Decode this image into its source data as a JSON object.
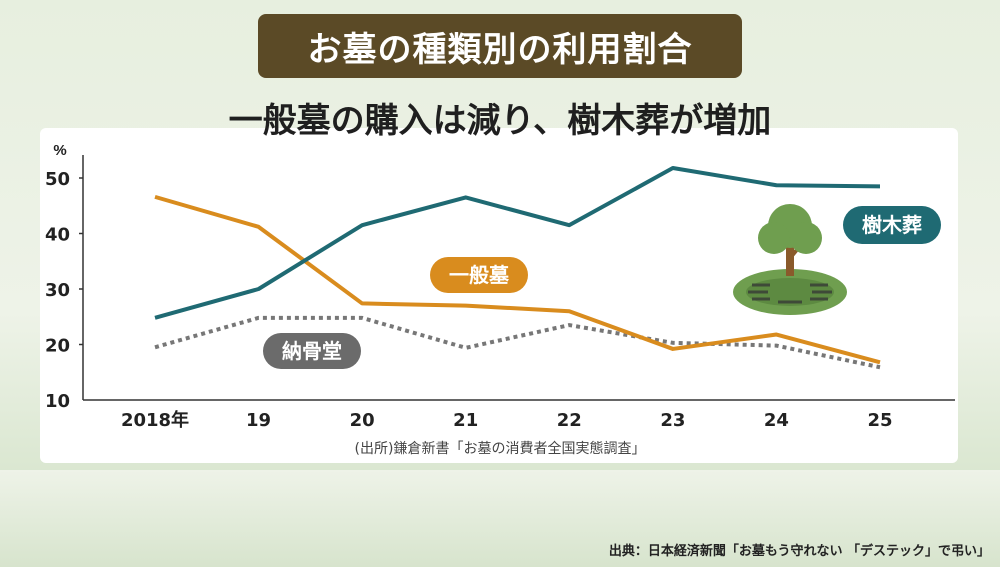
{
  "title": "お墓の種類別の利用割合",
  "subtitle": "一般墓の購入は減り、樹木葬が増加",
  "source": "(出所)鎌倉新書「お墓の消費者全国実態調査」",
  "credit": "出典：日本経済新聞「お墓もう守れない 「デステック」で弔い」",
  "chart_data": {
    "type": "line",
    "ylabel": "%",
    "ylim": [
      10,
      50
    ],
    "yticks": [
      10,
      20,
      30,
      40,
      50
    ],
    "categories": [
      "2018年",
      "19",
      "20",
      "21",
      "22",
      "23",
      "24",
      "25"
    ],
    "series": [
      {
        "name": "樹木葬",
        "values": [
          24.8,
          30.0,
          41.5,
          46.5,
          41.5,
          51.8,
          48.7,
          48.5
        ],
        "color": "#1f6a73",
        "style": "solid"
      },
      {
        "name": "一般墓",
        "values": [
          46.6,
          41.2,
          27.4,
          27.0,
          26.0,
          19.2,
          21.8,
          16.8
        ],
        "color": "#d98c1e",
        "style": "solid"
      },
      {
        "name": "納骨堂",
        "values": [
          19.5,
          24.8,
          24.8,
          19.4,
          23.5,
          20.3,
          19.8,
          15.9
        ],
        "color": "#777777",
        "style": "dotted"
      }
    ]
  },
  "icons": {
    "tree": "tree-icon"
  }
}
